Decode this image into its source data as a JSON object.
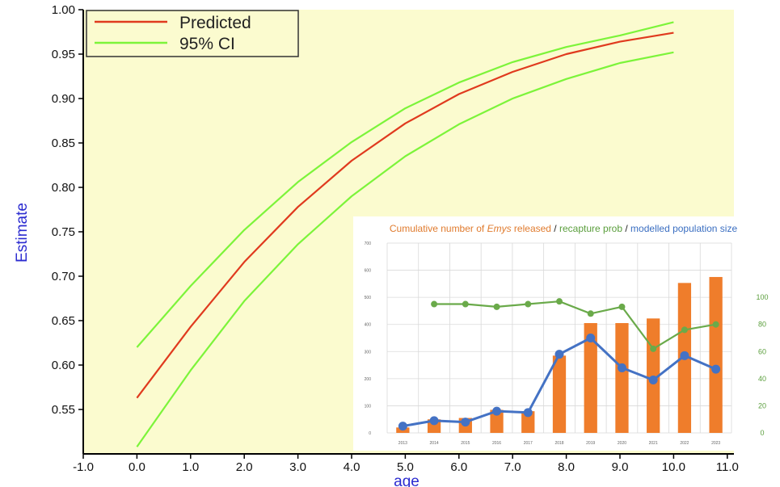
{
  "chart_data": [
    {
      "type": "line",
      "xlabel": "age",
      "ylabel": "Estimate",
      "xlim": [
        -1.0,
        11.0
      ],
      "ylim": [
        0.5,
        1.0
      ],
      "x_ticks": [
        "-1.0",
        "0.0",
        "1.0",
        "2.0",
        "3.0",
        "4.0",
        "5.0",
        "6.0",
        "7.0",
        "8.0",
        "9.0",
        "10.0",
        "11.0"
      ],
      "y_ticks": [
        "0.55",
        "0.60",
        "0.65",
        "0.70",
        "0.75",
        "0.80",
        "0.85",
        "0.90",
        "0.95",
        "1.00"
      ],
      "legend": {
        "position": "top-left",
        "entries": [
          "Predicted",
          "95% CI"
        ]
      },
      "colors": {
        "predicted": "#e03a1e",
        "ci": "#7cf43a",
        "background": "#fbfbcf",
        "axis_label": "#2b2bd0"
      },
      "x": [
        0.0,
        1.0,
        2.0,
        3.0,
        4.0,
        5.0,
        6.0,
        7.0,
        8.0,
        9.0,
        10.0
      ],
      "series": [
        {
          "name": "Predicted",
          "values": [
            0.563,
            0.643,
            0.716,
            0.778,
            0.83,
            0.872,
            0.905,
            0.93,
            0.95,
            0.964,
            0.974
          ]
        },
        {
          "name": "95% CI",
          "values": [
            0.62,
            0.689,
            0.752,
            0.806,
            0.851,
            0.889,
            0.918,
            0.941,
            0.958,
            0.971,
            0.986
          ]
        },
        {
          "name": "95% CI",
          "values": [
            0.508,
            0.594,
            0.672,
            0.736,
            0.79,
            0.835,
            0.871,
            0.9,
            0.922,
            0.94,
            0.952
          ]
        }
      ]
    },
    {
      "type": "bar",
      "title": {
        "part1": "Cumulative number of ",
        "part2": "Emys",
        "part3": " released",
        "sep1": " / ",
        "part4": "recapture prob",
        "sep2": " / ",
        "part5": "modelled population size"
      },
      "categories": [
        "2013",
        "2014",
        "2015",
        "2016",
        "2017",
        "2018",
        "2019",
        "2020",
        "2021",
        "2022",
        "2023"
      ],
      "left_axis": {
        "ylim": [
          0,
          700
        ],
        "ticks": [
          "0",
          "100",
          "200",
          "300",
          "400",
          "500",
          "600",
          "700"
        ]
      },
      "right_axis": {
        "ylim": [
          0,
          140
        ],
        "ticks": [
          "0",
          "20",
          "40",
          "60",
          "80",
          "100"
        ]
      },
      "colors": {
        "bars": "#ef7d2b",
        "recapture": "#6aaa4a",
        "population": "#4472c4",
        "grid": "#d9d9d9"
      },
      "series": [
        {
          "name": "Cumulative number of Emys released",
          "type": "bar",
          "axis": "left",
          "values": [
            20,
            50,
            55,
            85,
            80,
            285,
            405,
            405,
            422,
            553,
            575
          ]
        },
        {
          "name": "recapture prob",
          "type": "line",
          "axis": "right",
          "values": [
            null,
            95,
            95,
            93,
            95,
            97,
            88,
            93,
            62,
            76,
            80
          ]
        },
        {
          "name": "modelled population size",
          "type": "line",
          "axis": "right",
          "values": [
            5,
            9,
            8,
            16,
            15,
            58,
            70,
            48,
            39,
            57,
            47
          ]
        }
      ]
    }
  ]
}
